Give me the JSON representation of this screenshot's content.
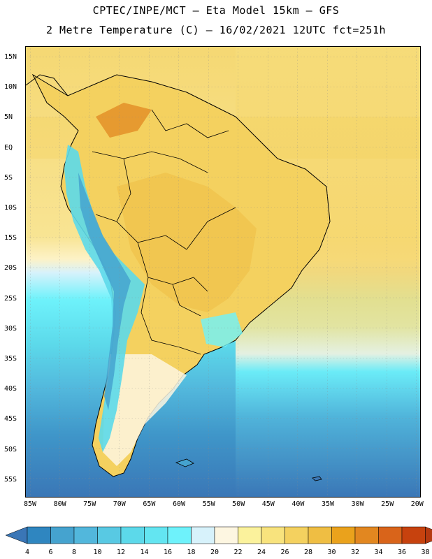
{
  "header": {
    "line1": "CPTEC/INPE/MCT –  Eta Model 15km – GFS",
    "line2": "2 Metre Temperature (C) – 16/02/2021 12UTC fct=251h"
  },
  "map": {
    "lat_labels": [
      "15N",
      "10N",
      "5N",
      "EQ",
      "5S",
      "10S",
      "15S",
      "20S",
      "25S",
      "30S",
      "35S",
      "40S",
      "45S",
      "50S",
      "55S"
    ],
    "lon_labels": [
      "85W",
      "80W",
      "75W",
      "70W",
      "65W",
      "60W",
      "55W",
      "50W",
      "45W",
      "40W",
      "35W",
      "30W",
      "25W",
      "20W"
    ]
  },
  "legend": {
    "levels": [
      "4",
      "6",
      "8",
      "10",
      "12",
      "14",
      "16",
      "18",
      "20",
      "22",
      "24",
      "26",
      "28",
      "30",
      "32",
      "34",
      "36",
      "38"
    ],
    "colors": [
      "#3a76b6",
      "#2f86c0",
      "#45a3cf",
      "#52b7dc",
      "#58c9e3",
      "#5cd9ea",
      "#63e5f1",
      "#6ef2fb",
      "#d7f2fb",
      "#fdf6e1",
      "#fbf29c",
      "#f8e37d",
      "#f4d15f",
      "#efbe43",
      "#eaa21c",
      "#e28720",
      "#d9641a",
      "#c7420e",
      "#b53910"
    ]
  }
}
